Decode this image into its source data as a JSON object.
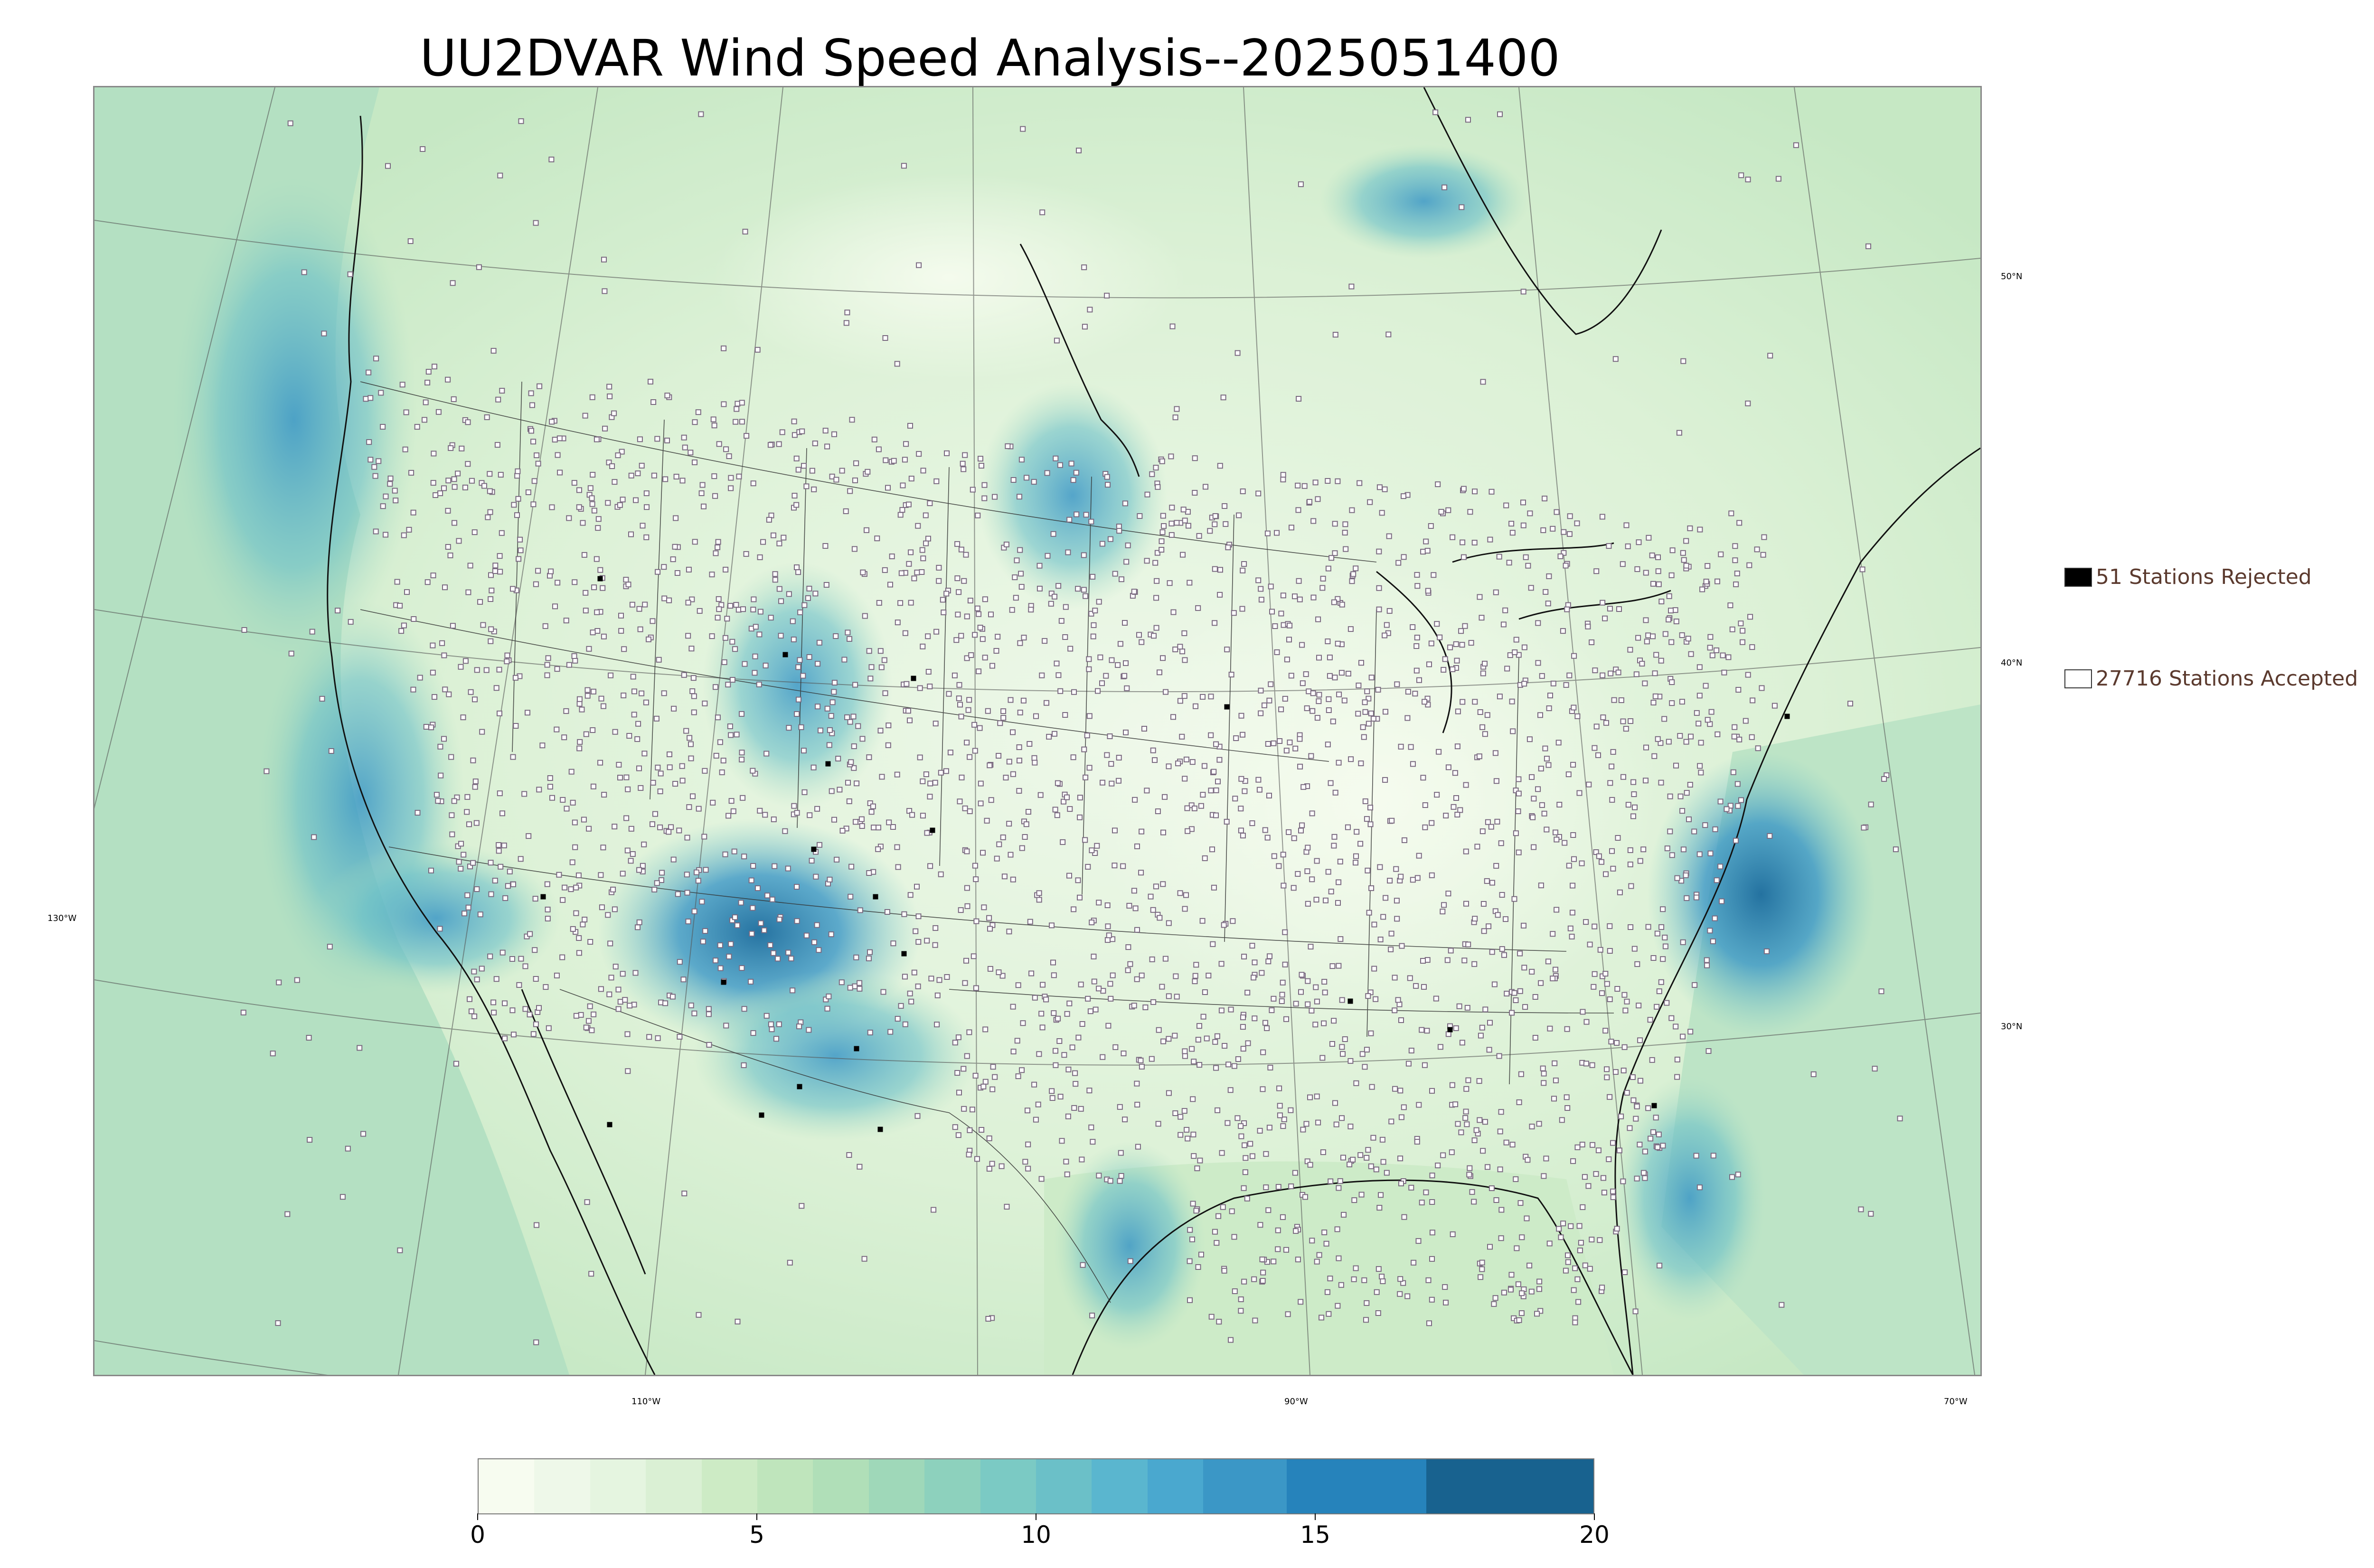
{
  "title": "UU2DVAR Wind Speed Analysis--2025051400",
  "legend": {
    "rejected": {
      "label": "51 Stations Rejected",
      "color": "#000000"
    },
    "accepted": {
      "label": "27716 Stations Accepted",
      "color": "#ffffff"
    }
  },
  "lat_labels": [
    "50°N",
    "40°N",
    "30°N"
  ],
  "lon_labels": [
    "130°W",
    "110°W",
    "90°W",
    "70°W"
  ],
  "colorbar": {
    "min": 0,
    "max": 20,
    "ticks": [
      "0",
      "5",
      "10",
      "15",
      "20"
    ],
    "segments": [
      {
        "from": 0,
        "to": 1,
        "color": "#f7fcf0"
      },
      {
        "from": 1,
        "to": 2,
        "color": "#eef8e9"
      },
      {
        "from": 2,
        "to": 3,
        "color": "#e5f5e0"
      },
      {
        "from": 3,
        "to": 4,
        "color": "#daf0d4"
      },
      {
        "from": 4,
        "to": 5,
        "color": "#cdebc5"
      },
      {
        "from": 5,
        "to": 6,
        "color": "#bfe5bc"
      },
      {
        "from": 6,
        "to": 7,
        "color": "#b0dfb8"
      },
      {
        "from": 7,
        "to": 8,
        "color": "#9fd8b9"
      },
      {
        "from": 8,
        "to": 9,
        "color": "#8dd1bd"
      },
      {
        "from": 9,
        "to": 10,
        "color": "#7bcac4"
      },
      {
        "from": 10,
        "to": 11,
        "color": "#6bc0c8"
      },
      {
        "from": 11,
        "to": 12,
        "color": "#5ab6cf"
      },
      {
        "from": 12,
        "to": 13,
        "color": "#4aa8cf"
      },
      {
        "from": 13,
        "to": 14.5,
        "color": "#3b97c6"
      },
      {
        "from": 14.5,
        "to": 17,
        "color": "#2683bb"
      },
      {
        "from": 17,
        "to": 20,
        "color": "#18628f"
      }
    ]
  },
  "colors": {
    "land_base": "#d6efd0",
    "ocean_base": "#a9dcc0",
    "station_fill": "#ffffff",
    "station_edge": "#7a6a80"
  }
}
